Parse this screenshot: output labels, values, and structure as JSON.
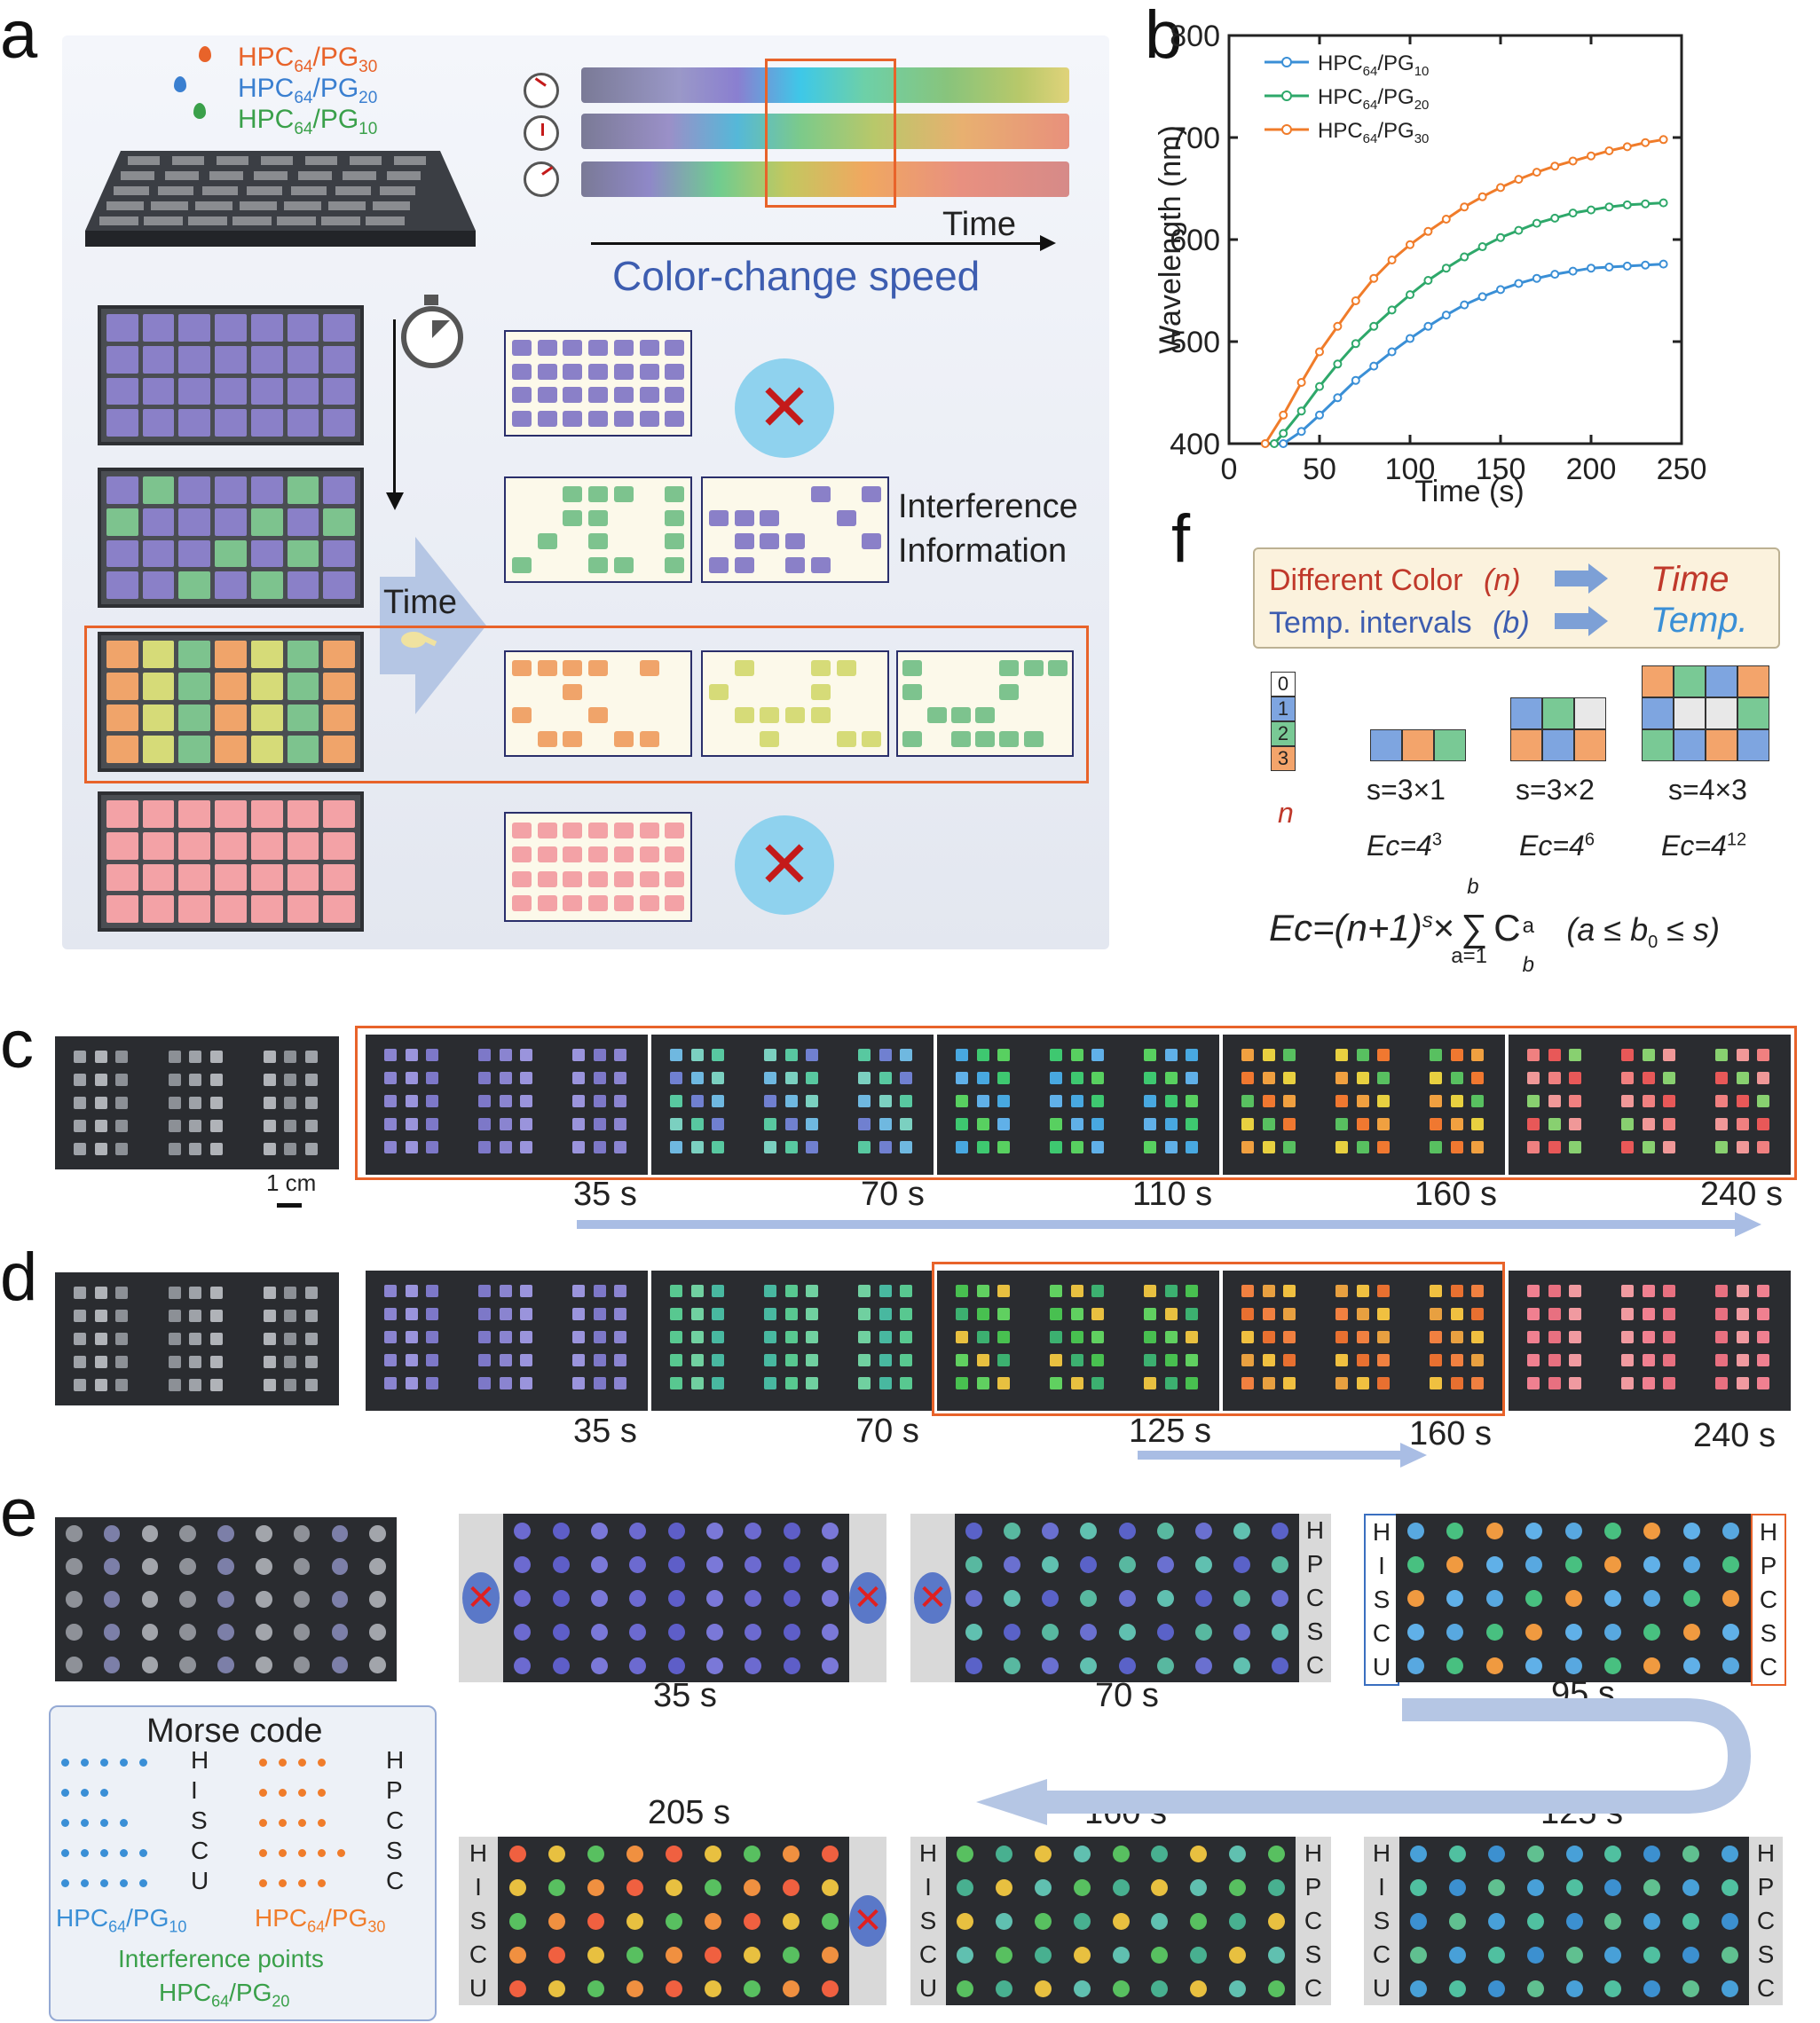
{
  "panel_labels": {
    "a": "a",
    "b": "b",
    "c": "c",
    "d": "d",
    "e": "e",
    "f": "f"
  },
  "panel_a": {
    "legend": [
      {
        "main": "HPC",
        "sub1": "64",
        "mid": "/PG",
        "sub2": "30",
        "color": "#e8632a"
      },
      {
        "main": "HPC",
        "sub1": "64",
        "mid": "/PG",
        "sub2": "20",
        "color": "#3a7fd0"
      },
      {
        "main": "HPC",
        "sub1": "64",
        "mid": "/PG",
        "sub2": "10",
        "color": "#3aa04a"
      }
    ],
    "time_axis_label": "Time",
    "speed_label": "Color-change speed",
    "time_arrow_label": "Time",
    "interference_line1": "Interference",
    "interference_line2": "Information",
    "colors": {
      "purple": "#8a80c8",
      "green": "#7dc38e",
      "orange": "#f0a46a",
      "yellow": "#d6db78",
      "pink": "#f3a2a6",
      "accent": "#e8632a",
      "blue_text": "#3d5db0"
    }
  },
  "panel_b": {
    "ylabel": "Wavelength (nm)",
    "xlabel": "Time (s)",
    "legend": [
      {
        "main": "HPC",
        "sub1": "64",
        "mid": "/PG",
        "sub2": "10",
        "color": "#3a8fd6"
      },
      {
        "main": "HPC",
        "sub1": "64",
        "mid": "/PG",
        "sub2": "20",
        "color": "#2ea86a"
      },
      {
        "main": "HPC",
        "sub1": "64",
        "mid": "/PG",
        "sub2": "30",
        "color": "#f07c2a"
      }
    ]
  },
  "chart_data": {
    "type": "line",
    "title": "",
    "xlabel": "Time (s)",
    "ylabel": "Wavelength (nm)",
    "xlim": [
      0,
      250
    ],
    "ylim": [
      400,
      800
    ],
    "xticks": [
      0,
      50,
      100,
      150,
      200,
      250
    ],
    "yticks": [
      400,
      500,
      600,
      700,
      800
    ],
    "legend_position": "top-left",
    "series": [
      {
        "name": "HPC64/PG10",
        "color": "#3a8fd6",
        "x": [
          30,
          40,
          50,
          60,
          70,
          80,
          90,
          100,
          110,
          120,
          130,
          140,
          150,
          160,
          170,
          180,
          190,
          200,
          210,
          220,
          230,
          240
        ],
        "y": [
          400,
          412,
          428,
          445,
          462,
          476,
          490,
          503,
          515,
          526,
          536,
          544,
          551,
          557,
          562,
          566,
          569,
          572,
          573,
          574,
          575,
          576
        ]
      },
      {
        "name": "HPC64/PG20",
        "color": "#2ea86a",
        "x": [
          25,
          30,
          40,
          50,
          60,
          70,
          80,
          90,
          100,
          110,
          120,
          130,
          140,
          150,
          160,
          170,
          180,
          190,
          200,
          210,
          220,
          230,
          240
        ],
        "y": [
          400,
          410,
          432,
          456,
          478,
          498,
          515,
          531,
          546,
          560,
          572,
          583,
          593,
          602,
          609,
          616,
          621,
          626,
          629,
          632,
          634,
          635,
          636
        ]
      },
      {
        "name": "HPC64/PG30",
        "color": "#f07c2a",
        "x": [
          20,
          30,
          40,
          50,
          60,
          70,
          80,
          90,
          100,
          110,
          120,
          130,
          140,
          150,
          160,
          170,
          180,
          190,
          200,
          210,
          220,
          230,
          240
        ],
        "y": [
          400,
          428,
          460,
          490,
          515,
          540,
          562,
          580,
          595,
          608,
          620,
          632,
          642,
          651,
          659,
          666,
          672,
          677,
          682,
          687,
          691,
          695,
          698
        ]
      }
    ]
  },
  "panel_c": {
    "scale_bar": "1 cm",
    "times": [
      "35 s",
      "70 s",
      "110 s",
      "160 s",
      "240 s"
    ]
  },
  "panel_d": {
    "times": [
      "35 s",
      "70 s",
      "125 s",
      "160 s",
      "240 s"
    ]
  },
  "panel_e": {
    "top_times": [
      "35 s",
      "70 s",
      "95 s"
    ],
    "bottom_times": [
      "205 s",
      "160 s",
      "125 s"
    ],
    "left_letters": [
      "H",
      "I",
      "S",
      "C",
      "U"
    ],
    "right_letters": [
      "H",
      "P",
      "C",
      "S",
      "C"
    ],
    "morse": {
      "title": "Morse code",
      "left_letters": [
        "H",
        "I",
        "S",
        "C",
        "U"
      ],
      "right_letters": [
        "H",
        "P",
        "C",
        "S",
        "C"
      ],
      "left_main": "HPC",
      "left_sub1": "64",
      "left_mid": "/PG",
      "left_sub2": "10",
      "right_main": "HPC",
      "right_sub1": "64",
      "right_mid": "/PG",
      "right_sub2": "30",
      "interference": "Interference points",
      "interf_main": "HPC",
      "interf_sub1": "64",
      "interf_mid": "/PG",
      "interf_sub2": "20"
    }
  },
  "panel_f": {
    "row1_left": "Different Color",
    "row1_var": "(n)",
    "row1_right": "Time",
    "row2_left": "Temp. intervals",
    "row2_var": "(b)",
    "row2_right": "Temp.",
    "legend_numbers": [
      "0",
      "1",
      "2",
      "3"
    ],
    "n_label": "n",
    "cases": [
      {
        "s": "s=3×1",
        "ec": "Ec=4",
        "exp": "3"
      },
      {
        "s": "s=3×2",
        "ec": "Ec=4",
        "exp": "6"
      },
      {
        "s": "s=4×3",
        "ec": "Ec=4",
        "exp": "12"
      }
    ],
    "formula_left": "Ec=(n+1)",
    "formula_exp": "s",
    "formula_times": "×",
    "formula_sum": "∑",
    "formula_top": "b",
    "formula_bottom": "a=1",
    "formula_C": "C",
    "formula_C_sup": "a",
    "formula_C_sub": "b",
    "formula_cond": "(a ≤ b",
    "formula_cond_sub": "0",
    "formula_cond_end": " ≤ s)"
  }
}
